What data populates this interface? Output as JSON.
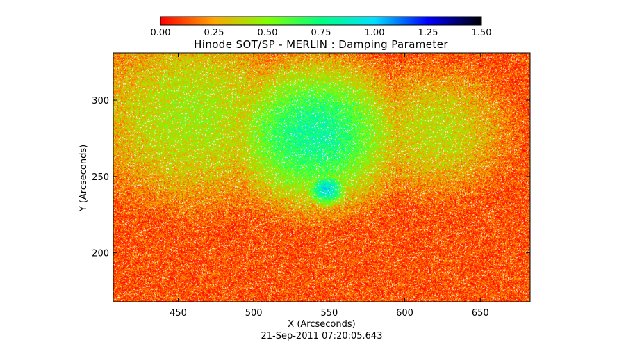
{
  "chart_data": {
    "type": "heatmap",
    "title": "Hinode SOT/SP - MERLIN : Damping Parameter",
    "xlabel": "X (Arcseconds)",
    "ylabel": "Y (Arcseconds)",
    "timestamp": "21-Sep-2011 07:20:05.643",
    "xlim": [
      407,
      683
    ],
    "ylim": [
      168,
      331
    ],
    "x_ticks": [
      450,
      500,
      550,
      600,
      650
    ],
    "y_ticks": [
      200,
      250,
      300
    ],
    "colorbar": {
      "range": [
        0.0,
        1.5
      ],
      "ticks": [
        "0.00",
        "0.25",
        "0.50",
        "0.75",
        "1.00",
        "1.25",
        "1.50"
      ],
      "stops": [
        {
          "v": 0.0,
          "color": "#ff0000"
        },
        {
          "v": 0.25,
          "color": "#ffa500"
        },
        {
          "v": 0.5,
          "color": "#80ff00"
        },
        {
          "v": 0.75,
          "color": "#00ff80"
        },
        {
          "v": 1.0,
          "color": "#00e0ff"
        },
        {
          "v": 1.25,
          "color": "#0000ff"
        },
        {
          "v": 1.5,
          "color": "#000000"
        }
      ]
    },
    "features": [
      {
        "x": 548,
        "y": 242,
        "value": 0.95,
        "radius": 10
      },
      {
        "x": 540,
        "y": 278,
        "value": 0.8,
        "radius": 40
      },
      {
        "x": 460,
        "y": 290,
        "value": 0.45,
        "radius": 55
      },
      {
        "x": 620,
        "y": 280,
        "value": 0.4,
        "radius": 40
      }
    ]
  }
}
